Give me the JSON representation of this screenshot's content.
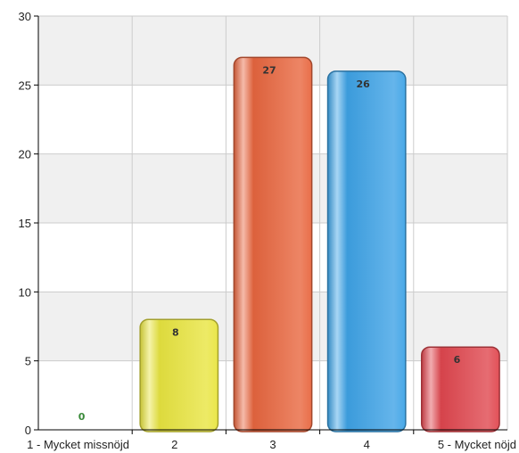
{
  "chart_data": {
    "type": "bar",
    "title": "",
    "xlabel": "",
    "ylabel": "",
    "categories": [
      "1 - Mycket missnöjd",
      "2",
      "3",
      "4",
      "5 - Mycket nöjd"
    ],
    "values": [
      0,
      8,
      27,
      26,
      6
    ],
    "value_labels": [
      "0",
      "8",
      "27",
      "26",
      "6"
    ],
    "ylim": [
      0,
      30
    ],
    "yticks": [
      0,
      5,
      10,
      15,
      20,
      25,
      30
    ],
    "ytick_labels": [
      "0",
      "5",
      "10",
      "15",
      "20",
      "25",
      "30"
    ],
    "grid": true,
    "legend": false,
    "bar_colors": [
      "#3f9a3f",
      "#e9e540",
      "#e8663f",
      "#3ea3e6",
      "#e0474f"
    ],
    "label_colors": [
      "#3a8a3a",
      "#333333",
      "#333333",
      "#333333",
      "#333333"
    ],
    "band_color": "#f0f0f0",
    "grid_color": "#cccccc"
  }
}
